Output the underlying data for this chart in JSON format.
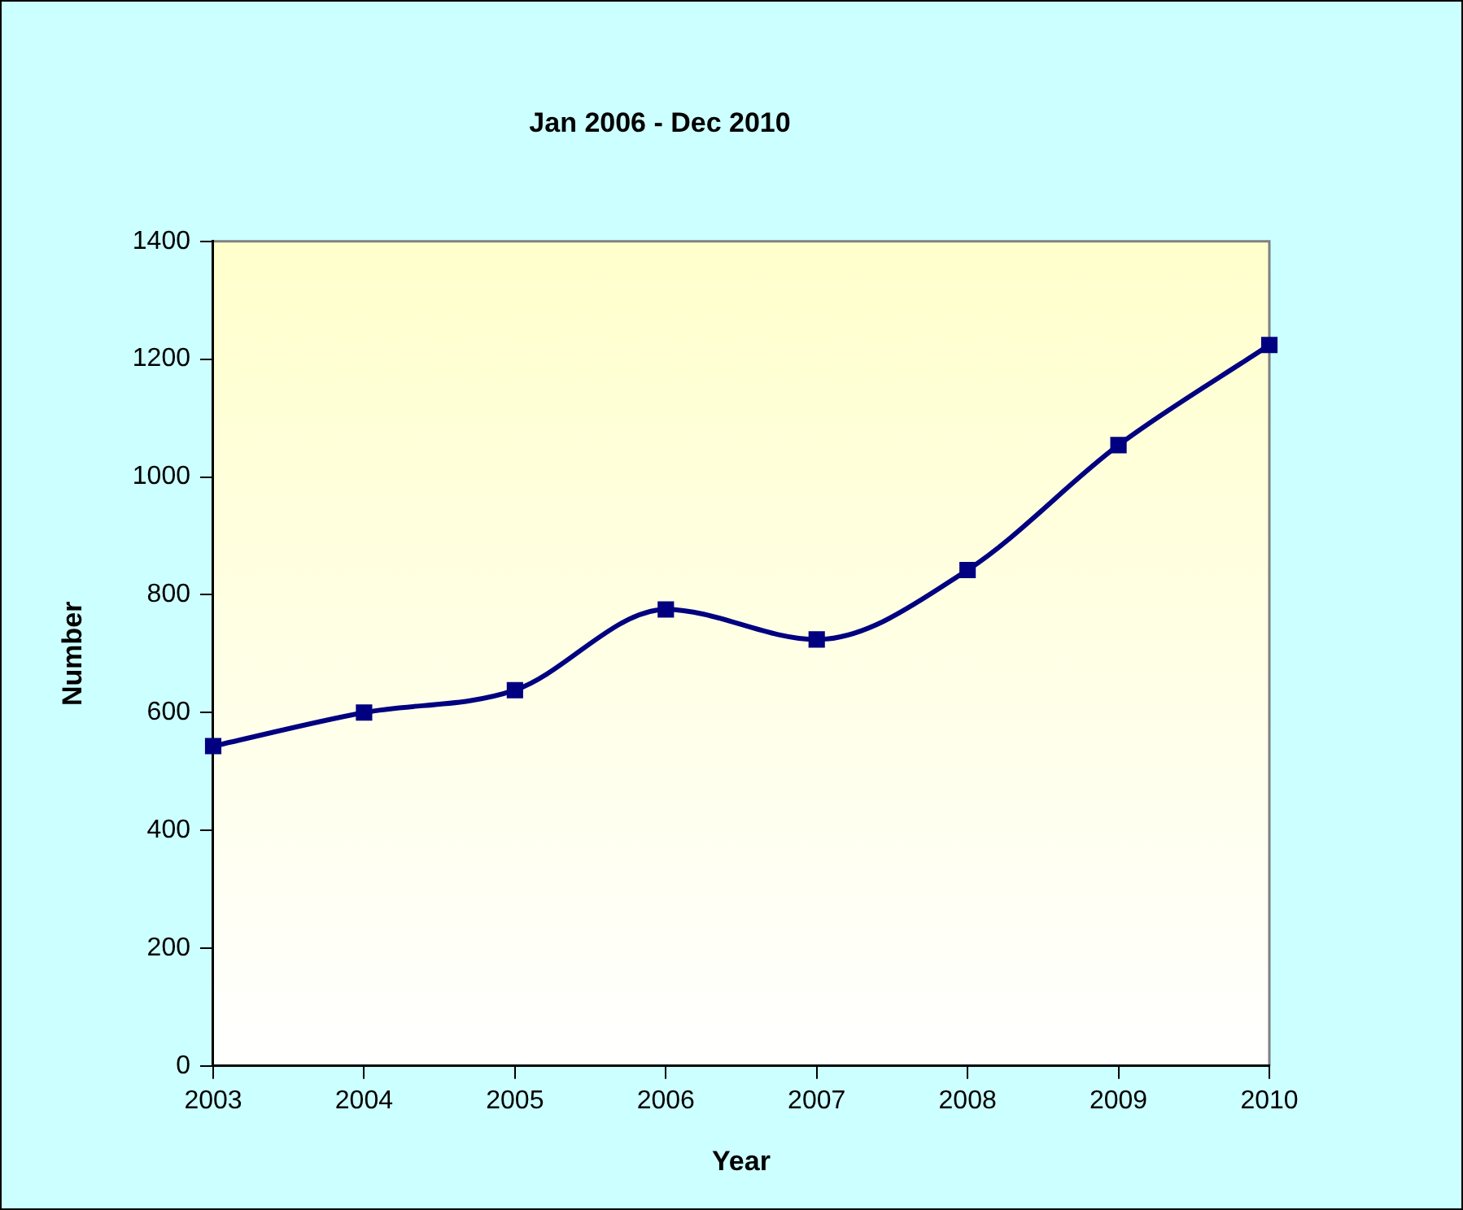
{
  "chart_data": {
    "type": "line",
    "title": "Jan 2006 - Dec 2010",
    "xlabel": "Year",
    "ylabel": "Number",
    "categories": [
      "2003",
      "2004",
      "2005",
      "2006",
      "2007",
      "2008",
      "2009",
      "2010"
    ],
    "series": [
      {
        "color": "#000080",
        "values": [
          543,
          600,
          638,
          775,
          724,
          842,
          1054,
          1224
        ]
      }
    ],
    "ylim": [
      0,
      1400
    ],
    "yticks": [
      0,
      200,
      400,
      600,
      800,
      1000,
      1200,
      1400
    ],
    "grid": false,
    "legend": false,
    "marker": "square",
    "line_style": "solid"
  }
}
